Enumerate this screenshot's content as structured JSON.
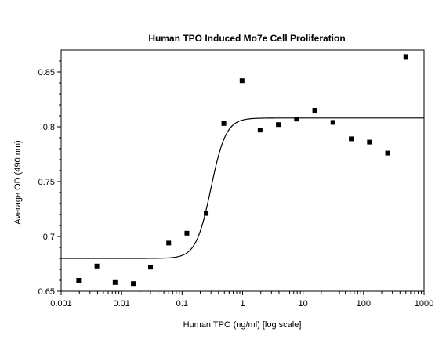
{
  "chart_data": {
    "type": "scatter",
    "title": "Human TPO Induced Mo7e Cell Proliferation",
    "xlabel": "Human TPO (ng/ml) [log scale]",
    "ylabel": "Average OD (490 nm)",
    "x_scale": "log",
    "xlim": [
      0.001,
      1000
    ],
    "ylim": [
      0.65,
      0.87
    ],
    "x_ticks": [
      0.001,
      0.01,
      0.1,
      1,
      10,
      100,
      1000
    ],
    "x_tick_labels": [
      "0.001",
      "0.01",
      "0.1",
      "1",
      "10",
      "100",
      "1000"
    ],
    "y_ticks": [
      0.65,
      0.7,
      0.75,
      0.8,
      0.85
    ],
    "y_tick_labels": [
      "0.65",
      "0.7",
      "0.75",
      "0.8",
      "0.85"
    ],
    "grid": false,
    "marker_color": "#000000",
    "series": [
      {
        "points": [
          {
            "x": 0.00195,
            "y": 0.66
          },
          {
            "x": 0.0039,
            "y": 0.673
          },
          {
            "x": 0.0078,
            "y": 0.658
          },
          {
            "x": 0.0156,
            "y": 0.657
          },
          {
            "x": 0.03,
            "y": 0.672
          },
          {
            "x": 0.06,
            "y": 0.694
          },
          {
            "x": 0.12,
            "y": 0.703
          },
          {
            "x": 0.25,
            "y": 0.721
          },
          {
            "x": 0.49,
            "y": 0.803
          },
          {
            "x": 0.98,
            "y": 0.842
          },
          {
            "x": 1.95,
            "y": 0.797
          },
          {
            "x": 3.9,
            "y": 0.802
          },
          {
            "x": 7.8,
            "y": 0.807
          },
          {
            "x": 15.6,
            "y": 0.815
          },
          {
            "x": 31.2,
            "y": 0.804
          },
          {
            "x": 62.5,
            "y": 0.789
          },
          {
            "x": 125,
            "y": 0.786
          },
          {
            "x": 250,
            "y": 0.776
          },
          {
            "x": 500,
            "y": 0.864
          }
        ]
      }
    ],
    "fit_curve": {
      "type": "sigmoid",
      "bottom": 0.68,
      "top": 0.808,
      "ec50": 0.3,
      "hill": 3.5
    }
  }
}
